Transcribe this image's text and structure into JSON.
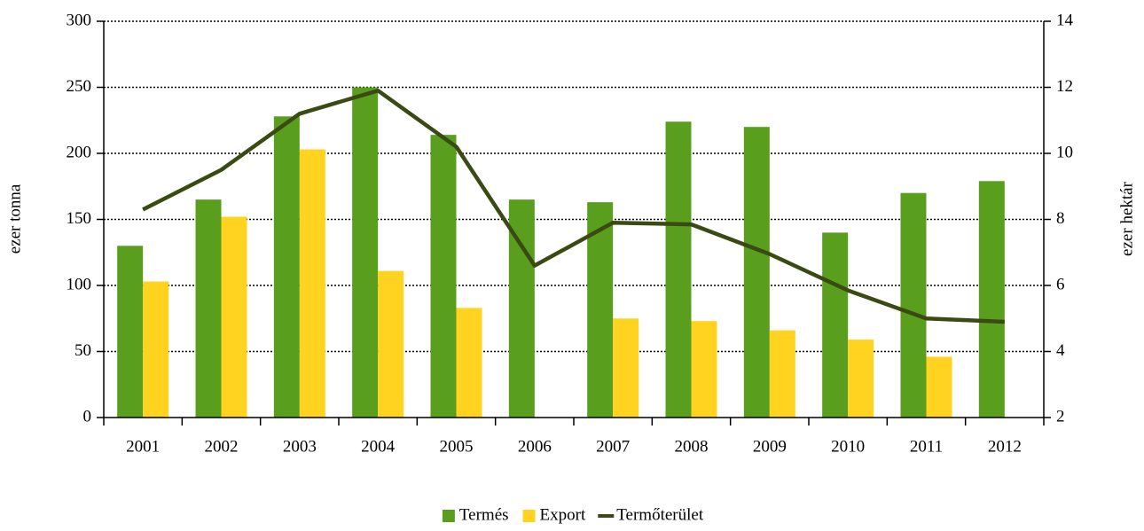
{
  "chart_data": {
    "type": "bar+line",
    "categories": [
      "2001",
      "2002",
      "2003",
      "2004",
      "2005",
      "2006",
      "2007",
      "2008",
      "2009",
      "2010",
      "2011",
      "2012"
    ],
    "series": [
      {
        "name": "Termés",
        "type": "bar",
        "color": "#5a9e1e",
        "values": [
          130,
          165,
          228,
          250,
          214,
          165,
          163,
          224,
          220,
          140,
          170,
          179
        ]
      },
      {
        "name": "Export",
        "type": "bar",
        "color": "#ffd320",
        "values": [
          103,
          152,
          203,
          111,
          83,
          null,
          75,
          73,
          66,
          59,
          46,
          null
        ]
      },
      {
        "name": "Termőterület",
        "type": "line",
        "axis": "y2",
        "color": "#3a4a12",
        "values": [
          8.3,
          9.5,
          11.2,
          11.9,
          10.2,
          6.6,
          7.9,
          7.85,
          6.95,
          5.85,
          5.0,
          4.9
        ]
      }
    ],
    "ylabel": "ezer tonna",
    "y2label": "ezer hektár",
    "ylim": [
      0,
      300
    ],
    "yticks": [
      0,
      50,
      100,
      150,
      200,
      250,
      300
    ],
    "y2lim": [
      2,
      14
    ],
    "y2ticks": [
      2,
      4,
      6,
      8,
      10,
      12,
      14
    ],
    "grid": true,
    "legend": "bottom"
  }
}
